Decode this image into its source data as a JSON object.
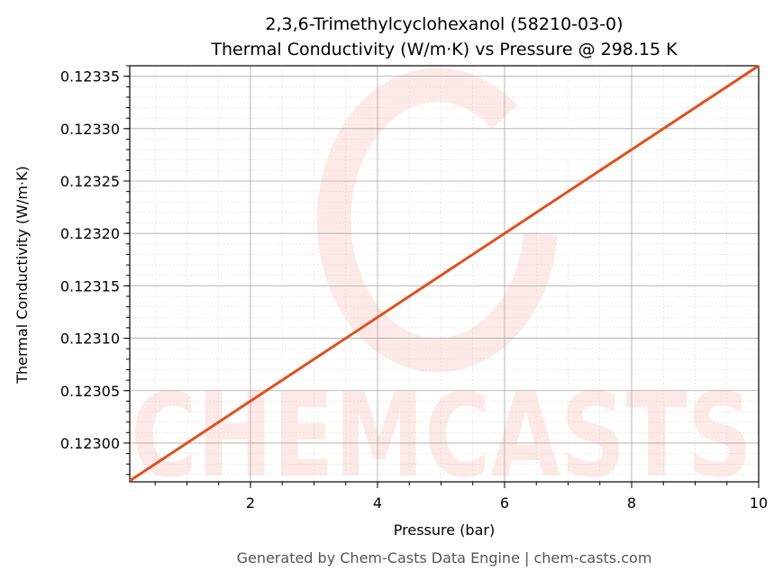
{
  "chart_data": {
    "type": "line",
    "title_line1": "2,3,6-Trimethylcyclohexanol (58210-03-0)",
    "title_line2": "Thermal Conductivity (W/m·K) vs Pressure @ 298.15 K",
    "xlabel": "Pressure (bar)",
    "ylabel": "Thermal Conductivity (W/m·K)",
    "xlim": [
      0.1,
      10
    ],
    "ylim": [
      0.122963,
      0.12336
    ],
    "xticks": [
      2,
      4,
      6,
      8,
      10
    ],
    "yticks": [
      0.123,
      0.12305,
      0.1231,
      0.12315,
      0.1232,
      0.12325,
      0.1233,
      0.12335
    ],
    "ytick_labels": [
      "0.12300",
      "0.12305",
      "0.12310",
      "0.12315",
      "0.12320",
      "0.12325",
      "0.12330",
      "0.12335"
    ],
    "grid": true,
    "series": [
      {
        "x": [
          0.1,
          10
        ],
        "y": [
          0.122964,
          0.12336
        ],
        "color": "#e0501e"
      }
    ]
  },
  "watermark": "CHEMCASTS",
  "footer": "Generated by Chem-Casts Data Engine | chem-casts.com"
}
